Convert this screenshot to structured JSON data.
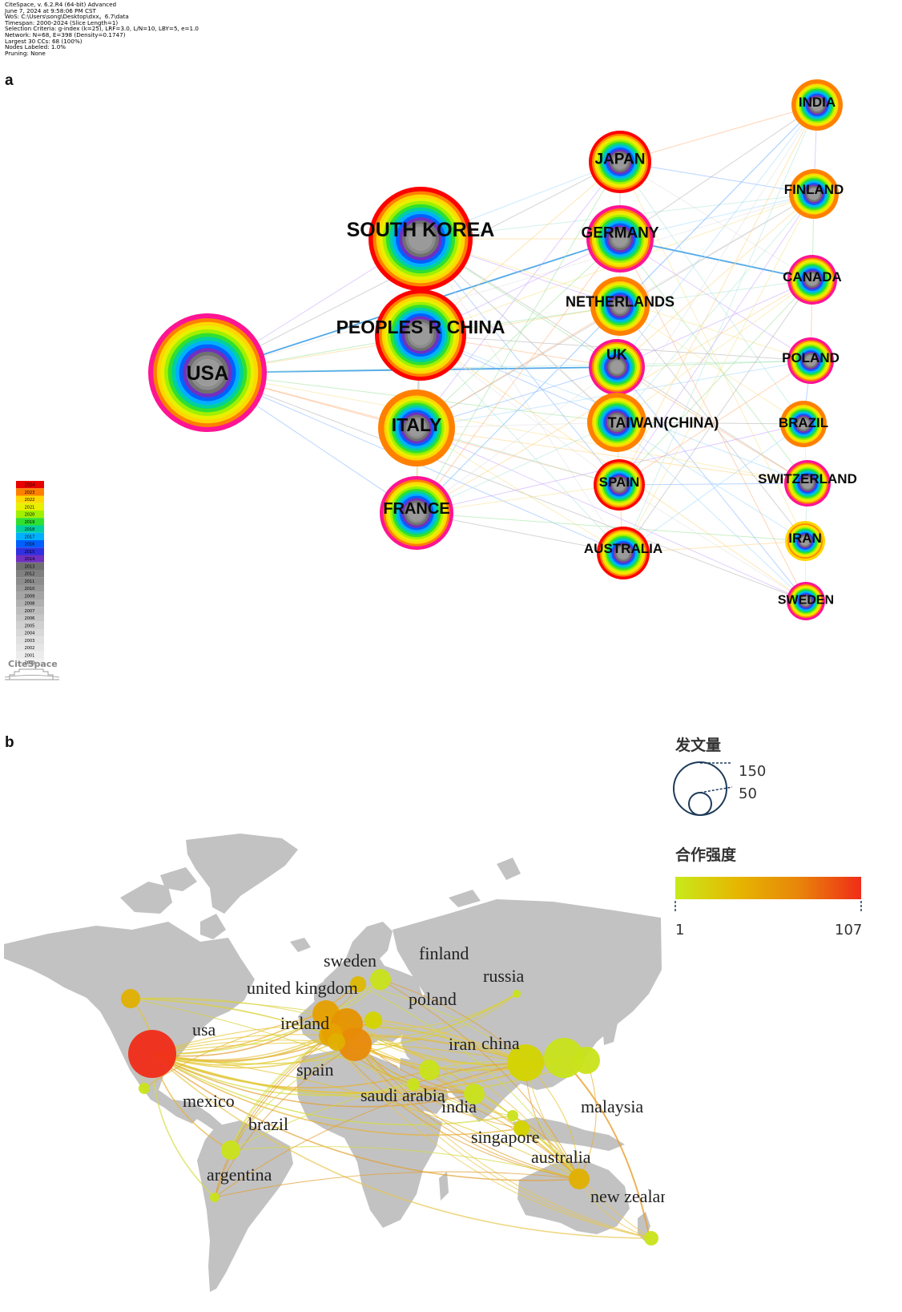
{
  "metadata_lines": [
    "CiteSpace, v. 6.2.R4 (64-bit) Advanced",
    "June 7, 2024 at 9:58:06 PM CST",
    "WoS: C:\\Users\\song\\Desktop\\dxx。6.7\\data",
    "Timespan: 2000-2024 (Slice Length=1)",
    "Selection Criteria: g-index (k=25), LRF=3.0, L/N=10, LBY=5, e=1.0",
    "Network: N=68, E=398 (Density=0.1747)",
    "Largest 30 CCs: 68 (100%)",
    "Nodes Labeled: 1.0%",
    "Pruning: None"
  ],
  "panel_a": {
    "letter": "a",
    "logo_text": "CiteSpace",
    "year_legend": [
      "2024",
      "2023",
      "2022",
      "2021",
      "2020",
      "2019",
      "2018",
      "2017",
      "2016",
      "2015",
      "2014",
      "2013",
      "2012",
      "2011",
      "2010",
      "2009",
      "2008",
      "2007",
      "2006",
      "2005",
      "2004",
      "2003",
      "2002",
      "2001",
      "2000"
    ],
    "year_colors": [
      "#e60000",
      "#ff8000",
      "#ffd700",
      "#e8f000",
      "#a0f000",
      "#30e030",
      "#00d0a0",
      "#00b0ff",
      "#0060ff",
      "#3030e0",
      "#7030c0",
      "#707070",
      "#808080",
      "#8c8c8c",
      "#989898",
      "#a4a4a4",
      "#b0b0b0",
      "#bcbcbc",
      "#c6c6c6",
      "#d0d0d0",
      "#d8d8d8",
      "#e0e0e0",
      "#e6e6e6",
      "#ececec",
      "#f2f2f2"
    ],
    "nodes": [
      {
        "id": "usa",
        "label": "USA",
        "radius": 74,
        "outer": "#ff1493",
        "font": 25
      },
      {
        "id": "south_korea",
        "label": "SOUTH KOREA",
        "radius": 65,
        "outer": "#ff0000",
        "font": 25
      },
      {
        "id": "china",
        "label": "PEOPLES R CHINA",
        "radius": 57,
        "outer": "#ff0000",
        "font": 23
      },
      {
        "id": "italy",
        "label": "ITALY",
        "radius": 48,
        "outer": "#ff8000",
        "font": 23
      },
      {
        "id": "france",
        "label": "FRANCE",
        "radius": 46,
        "outer": "#ff1493",
        "font": 20
      },
      {
        "id": "japan",
        "label": "JAPAN",
        "radius": 39,
        "outer": "#ff0000",
        "font": 19
      },
      {
        "id": "germany",
        "label": "GERMANY",
        "radius": 42,
        "outer": "#ff1493",
        "font": 19
      },
      {
        "id": "netherlands",
        "label": "NETHERLANDS",
        "radius": 37,
        "outer": "#ff8000",
        "font": 18
      },
      {
        "id": "uk",
        "label": "UK",
        "radius": 35,
        "outer": "#ff1493",
        "font": 18
      },
      {
        "id": "taiwan",
        "label": "TAIWAN(CHINA)",
        "radius": 37,
        "outer": "#ff8000",
        "font": 18
      },
      {
        "id": "spain",
        "label": "SPAIN",
        "radius": 32,
        "outer": "#ff0000",
        "font": 17
      },
      {
        "id": "australia",
        "label": "AUSTRALIA",
        "radius": 33,
        "outer": "#ff0000",
        "font": 17
      },
      {
        "id": "india",
        "label": "INDIA",
        "radius": 32,
        "outer": "#ff8000",
        "font": 17
      },
      {
        "id": "finland",
        "label": "FINLAND",
        "radius": 31,
        "outer": "#ff8000",
        "font": 17
      },
      {
        "id": "canada",
        "label": "CANADA",
        "radius": 31,
        "outer": "#ff1493",
        "font": 17
      },
      {
        "id": "poland",
        "label": "POLAND",
        "radius": 29,
        "outer": "#ff1493",
        "font": 17
      },
      {
        "id": "brazil",
        "label": "BRAZIL",
        "radius": 29,
        "outer": "#ff8000",
        "font": 17
      },
      {
        "id": "switzerland",
        "label": "SWITZERLAND",
        "radius": 29,
        "outer": "#ff1493",
        "font": 17
      },
      {
        "id": "iran",
        "label": "IRAN",
        "radius": 25,
        "outer": "#ffd700",
        "font": 17
      },
      {
        "id": "sweden",
        "label": "SWEDEN",
        "radius": 24,
        "outer": "#ff1493",
        "font": 16
      }
    ]
  },
  "panel_b": {
    "letter": "b",
    "size_legend_title": "发文量",
    "size_legend_values": [
      "150",
      "50"
    ],
    "color_legend_title": "合作强度",
    "color_legend_min": "1",
    "color_legend_max": "107",
    "gradient_colors": [
      "#c8ea1a",
      "#e6b600",
      "#e8850a",
      "#f02c18"
    ],
    "land_color": "#c2c2c2",
    "labels": [
      {
        "name": "finland",
        "size": 22
      },
      {
        "name": "sweden",
        "size": 22
      },
      {
        "name": "russia",
        "size": 22
      },
      {
        "name": "united kingdom",
        "size": 22
      },
      {
        "name": "poland",
        "size": 22
      },
      {
        "name": "ireland",
        "size": 22
      },
      {
        "name": "usa",
        "size": 22
      },
      {
        "name": "iran",
        "size": 22
      },
      {
        "name": "china",
        "size": 22
      },
      {
        "name": "spain",
        "size": 22
      },
      {
        "name": "mexico",
        "size": 22
      },
      {
        "name": "saudi arabia",
        "size": 22
      },
      {
        "name": "india",
        "size": 22
      },
      {
        "name": "malaysia",
        "size": 22
      },
      {
        "name": "brazil",
        "size": 22
      },
      {
        "name": "singapore",
        "size": 22
      },
      {
        "name": "australia",
        "size": 22
      },
      {
        "name": "argentina",
        "size": 22
      },
      {
        "name": "new zealand",
        "size": 22
      }
    ],
    "bubbles": [
      {
        "id": "usa",
        "color": "#f02c18",
        "r": 30
      },
      {
        "id": "canada",
        "color": "#e0b000",
        "r": 12
      },
      {
        "id": "mexico",
        "color": "#c9e31a",
        "r": 7
      },
      {
        "id": "brazil",
        "color": "#c9e31a",
        "r": 12
      },
      {
        "id": "argentina",
        "color": "#c9e31a",
        "r": 6
      },
      {
        "id": "uk",
        "color": "#e6a000",
        "r": 17
      },
      {
        "id": "germany",
        "color": "#e69300",
        "r": 20
      },
      {
        "id": "italy",
        "color": "#e88a0a",
        "r": 21
      },
      {
        "id": "spain",
        "color": "#e6a800",
        "r": 13
      },
      {
        "id": "sweden",
        "color": "#ddb800",
        "r": 10
      },
      {
        "id": "finland",
        "color": "#c9e31a",
        "r": 13
      },
      {
        "id": "poland",
        "color": "#d4d400",
        "r": 11
      },
      {
        "id": "netherlands",
        "color": "#e6a000",
        "r": 13
      },
      {
        "id": "switzerland",
        "color": "#e0b000",
        "r": 11
      },
      {
        "id": "russia",
        "color": "#c9e31a",
        "r": 5
      },
      {
        "id": "iran",
        "color": "#c9e31a",
        "r": 13
      },
      {
        "id": "saudi",
        "color": "#c9e31a",
        "r": 8
      },
      {
        "id": "india",
        "color": "#c9e31a",
        "r": 13
      },
      {
        "id": "china",
        "color": "#d4d400",
        "r": 23
      },
      {
        "id": "korea",
        "color": "#c9e31a",
        "r": 25
      },
      {
        "id": "japan",
        "color": "#c9e31a",
        "r": 17
      },
      {
        "id": "malaysia",
        "color": "#d4d400",
        "r": 10
      },
      {
        "id": "singapore",
        "color": "#c9e31a",
        "r": 7
      },
      {
        "id": "australia",
        "color": "#e0b000",
        "r": 13
      },
      {
        "id": "nz",
        "color": "#c9e31a",
        "r": 9
      }
    ]
  }
}
